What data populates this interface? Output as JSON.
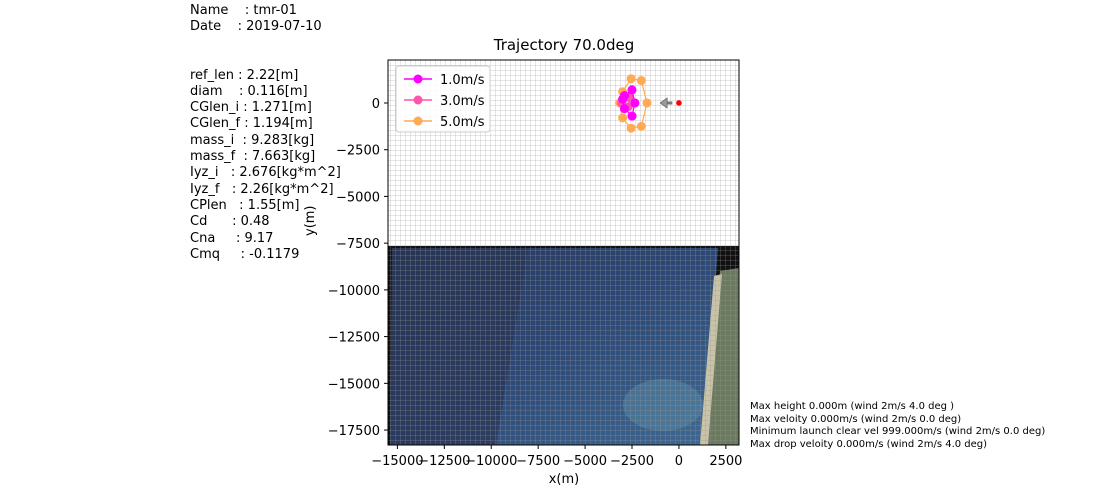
{
  "rocket_info": {
    "name": "Name    : tmr-01",
    "date": "Date    : 2019-07-10",
    "params": [
      "ref_len : 2.22[m]",
      "diam    : 0.116[m]",
      "CGlen_i : 1.271[m]",
      "CGlen_f : 1.194[m]",
      "mass_i  : 9.283[kg]",
      "mass_f  : 7.663[kg]",
      "Iyz_i   : 2.676[kg*m^2]",
      "Iyz_f   : 2.26[kg*m^2]",
      "CPlen   : 1.55[m]",
      "Cd      : 0.48",
      "Cna     : 9.17",
      "Cmq     : -0.1179"
    ]
  },
  "notes": [
    "Max height 0.000m (wind 2m/s 4.0 deg )",
    "Max veloity 0.000m/s (wind 2m/s 0.0 deg)",
    "Minimum launch clear vel 999.000m/s (wind 2m/s 0.0 deg)",
    "Max drop veloity 0.000m/s (wind 2m/s 4.0 deg)"
  ],
  "chart_data": {
    "type": "scatter",
    "title": "Trajectory 70.0deg",
    "xlabel": "x(m)",
    "ylabel": "y(m)",
    "xlim": [
      -15500,
      3200
    ],
    "ylim": [
      -18300,
      2300
    ],
    "xticks": [
      -15000,
      -12500,
      -10000,
      -7500,
      -5000,
      -2500,
      0,
      2500
    ],
    "xtick_labels": [
      "−15000",
      "−12500",
      "−10000",
      "−7500",
      "−5000",
      "−2500",
      "0",
      "2500"
    ],
    "yticks": [
      0,
      -2500,
      -5000,
      -7500,
      -10000,
      -12500,
      -15000,
      -17500
    ],
    "ytick_labels": [
      "0",
      "−2500",
      "−5000",
      "−7500",
      "−10000",
      "−12500",
      "−15000",
      "−17500"
    ],
    "grid": true,
    "legend_position": "top-left",
    "launch_point": {
      "x": 0,
      "y": 0,
      "color": "#ff0000"
    },
    "wind_arrow": {
      "from_x": -350,
      "to_x": -1000,
      "y": 0
    },
    "background_map": {
      "top_y": -7650,
      "description_colors": [
        "#283a5c",
        "#2f4a7c",
        "#3a6390",
        "#4d6a5a"
      ]
    },
    "series": [
      {
        "name": "1.0m/s",
        "color": "#ff00ff",
        "points": [
          [
            -2500,
            700
          ],
          [
            -2350,
            0
          ],
          [
            -2500,
            -700
          ],
          [
            -2900,
            -300
          ],
          [
            -3000,
            200
          ],
          [
            -2900,
            400
          ]
        ]
      },
      {
        "name": "3.0m/s",
        "color": "#ff55aa",
        "points": [
          [
            -2500,
            700
          ],
          [
            -2350,
            0
          ],
          [
            -2500,
            -700
          ],
          [
            -2900,
            -300
          ],
          [
            -3000,
            200
          ],
          [
            -3050,
            0
          ],
          [
            -2650,
            300
          ],
          [
            -2700,
            -200
          ]
        ]
      },
      {
        "name": "5.0m/s",
        "color": "#ffaa55",
        "points": [
          [
            -2550,
            1300
          ],
          [
            -2000,
            1200
          ],
          [
            -1700,
            0
          ],
          [
            -2000,
            -1250
          ],
          [
            -2550,
            -1350
          ],
          [
            -3000,
            -800
          ],
          [
            -3150,
            0
          ],
          [
            -3000,
            600
          ]
        ]
      }
    ]
  }
}
